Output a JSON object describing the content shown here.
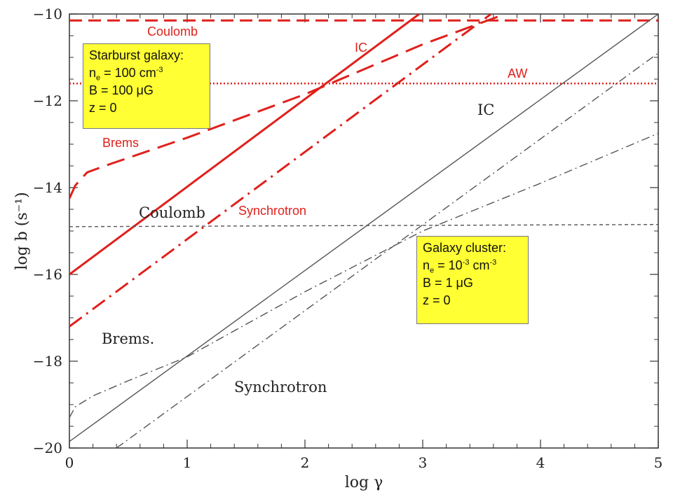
{
  "chart_data": {
    "type": "line",
    "title": "",
    "xlabel": "log γ",
    "ylabel": "log b (s⁻¹)",
    "xlim": [
      0,
      5
    ],
    "ylim": [
      -20,
      -10
    ],
    "x_ticks": [
      0,
      1,
      2,
      3,
      4,
      5
    ],
    "y_ticks": [
      -10,
      -12,
      -14,
      -16,
      -18,
      -20
    ],
    "grid": false,
    "series": [
      {
        "name": "Coulomb",
        "group": "starburst",
        "color": "#e0201b",
        "style": "dashed",
        "x": [
          0,
          5
        ],
        "y": [
          -10.15,
          -10.15
        ]
      },
      {
        "name": "AW",
        "group": "starburst",
        "color": "#e0201b",
        "style": "dotted",
        "x": [
          0,
          5
        ],
        "y": [
          -11.6,
          -11.6
        ]
      },
      {
        "name": "IC",
        "group": "starburst",
        "color": "#e0201b",
        "style": "solid",
        "x": [
          0,
          2.97
        ],
        "y": [
          -16.0,
          -10.0
        ]
      },
      {
        "name": "Synchrotron",
        "group": "starburst",
        "color": "#e0201b",
        "style": "dashdot",
        "x": [
          0,
          3.58
        ],
        "y": [
          -17.2,
          -10.0
        ]
      },
      {
        "name": "Brems",
        "group": "starburst",
        "color": "#e0201b",
        "style": "longdash",
        "x": [
          0,
          0.05,
          0.15,
          0.3,
          1.0,
          2.0,
          3.0,
          3.7
        ],
        "y": [
          -14.25,
          -13.95,
          -13.65,
          -13.5,
          -12.85,
          -11.85,
          -10.7,
          -10.0
        ]
      },
      {
        "name": "Coulomb",
        "group": "cluster",
        "color": "#555555",
        "style": "dashed",
        "x": [
          0,
          5
        ],
        "y": [
          -14.9,
          -14.85
        ]
      },
      {
        "name": "IC",
        "group": "cluster",
        "color": "#555555",
        "style": "solid",
        "x": [
          0,
          5
        ],
        "y": [
          -19.85,
          -10.0
        ]
      },
      {
        "name": "Synchrotron",
        "group": "cluster",
        "color": "#555555",
        "style": "dashdot",
        "x": [
          0.4,
          5
        ],
        "y": [
          -20.0,
          -10.9
        ]
      },
      {
        "name": "Brems.",
        "group": "cluster",
        "color": "#555555",
        "style": "dashdot",
        "x": [
          0,
          0.05,
          0.2,
          0.5,
          1.0,
          2.0,
          3.0,
          4.0,
          5.0
        ],
        "y": [
          -19.3,
          -19.05,
          -18.8,
          -18.45,
          -17.9,
          -16.4,
          -15.0,
          -13.9,
          -12.75
        ]
      }
    ],
    "annotations": {
      "starburst_box": {
        "line1": "Starburst galaxy:",
        "ne_prefix": "n",
        "ne_sub": "e",
        "ne_value": " = 100 cm",
        "ne_exp": "-3",
        "b_line": "B = 100 μG",
        "z_line": "z = 0"
      },
      "cluster_box": {
        "line1": "Galaxy cluster:",
        "ne_prefix": "n",
        "ne_sub": "e",
        "ne_value": " = 10",
        "ne_exp1": "-3",
        "ne_unit": " cm",
        "ne_exp2": "-3",
        "b_line": "B = 1 μG",
        "z_line": "z = 0"
      }
    }
  }
}
